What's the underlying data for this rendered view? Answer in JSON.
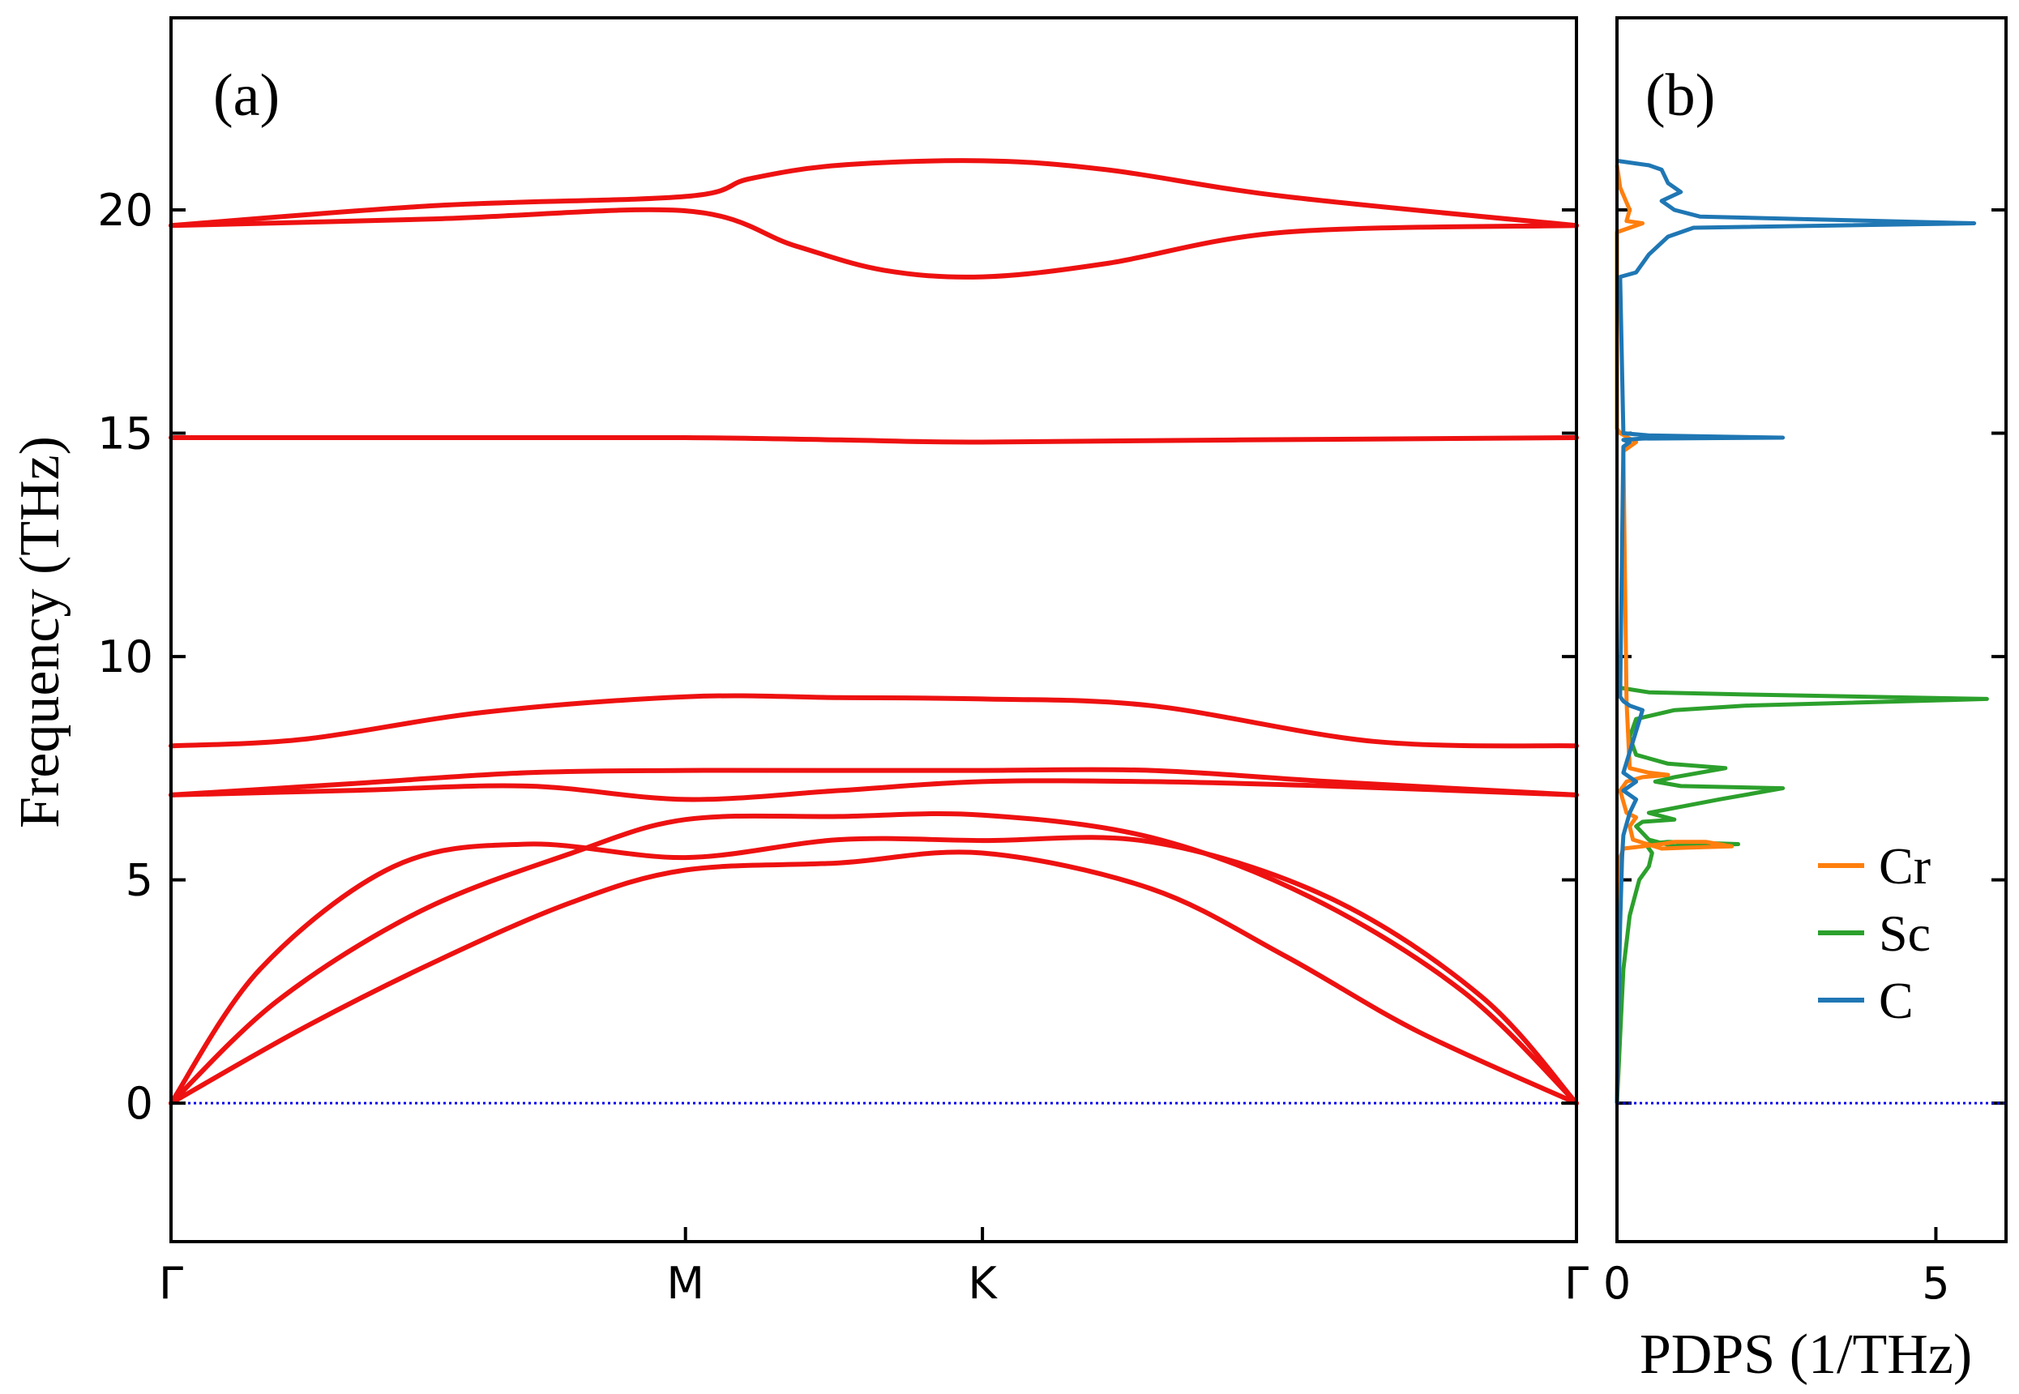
{
  "chart_data": [
    {
      "type": "line",
      "panel_label": "(a)",
      "ylabel": "Frequency (THz)",
      "xlabel": "",
      "ylim": [
        -3.1,
        24.3
      ],
      "yticks": [
        0,
        5,
        10,
        15,
        20
      ],
      "ytick_labels": [
        "0",
        "5",
        "10",
        "15",
        "20"
      ],
      "x_path": [
        "Γ",
        "M",
        "K",
        "Γ"
      ],
      "x_path_positions": [
        0,
        0.5774,
        0.9107,
        1.5774
      ],
      "grid": false,
      "line_color": "#ee1111",
      "zero_line_color": "#0000ee",
      "zero_line_value": 0,
      "series": [
        {
          "x": [
            0,
            0.15,
            0.3,
            0.45,
            0.5774,
            0.75,
            0.9107,
            1.1,
            1.25,
            1.4,
            1.5774
          ],
          "y": [
            0,
            1.7,
            3.2,
            4.5,
            5.22,
            5.38,
            5.6,
            4.8,
            3.3,
            1.6,
            0
          ]
        },
        {
          "x": [
            0,
            0.12,
            0.28,
            0.45,
            0.5774,
            0.75,
            0.9107,
            1.1,
            1.28,
            1.45,
            1.5774
          ],
          "y": [
            0,
            2.3,
            4.3,
            5.6,
            6.35,
            6.42,
            6.45,
            5.95,
            4.6,
            2.5,
            0
          ]
        },
        {
          "x": [
            0,
            0.1,
            0.25,
            0.4,
            0.5774,
            0.75,
            0.9107,
            1.1,
            1.3,
            1.47,
            1.5774
          ],
          "y": [
            0,
            3.0,
            5.3,
            5.8,
            5.5,
            5.9,
            5.88,
            5.85,
            4.6,
            2.4,
            0
          ]
        },
        {
          "x": [
            0,
            0.2,
            0.4,
            0.5774,
            0.75,
            0.9107,
            1.1,
            1.3,
            1.5774
          ],
          "y": [
            6.9,
            7.0,
            7.1,
            6.8,
            7.0,
            7.2,
            7.2,
            7.1,
            6.9
          ]
        },
        {
          "x": [
            0,
            0.2,
            0.4,
            0.5774,
            0.75,
            0.9107,
            1.1,
            1.3,
            1.5774
          ],
          "y": [
            6.9,
            7.15,
            7.4,
            7.45,
            7.45,
            7.45,
            7.45,
            7.2,
            6.9
          ]
        },
        {
          "x": [
            0,
            0.15,
            0.35,
            0.5774,
            0.75,
            0.9107,
            1.1,
            1.35,
            1.5774
          ],
          "y": [
            8.0,
            8.15,
            8.75,
            9.1,
            9.08,
            9.05,
            8.9,
            8.1,
            8.0
          ]
        },
        {
          "x": [
            0,
            0.3,
            0.5774,
            0.75,
            0.9107,
            1.2,
            1.5774
          ],
          "y": [
            14.9,
            14.9,
            14.9,
            14.85,
            14.8,
            14.85,
            14.9
          ]
        },
        {
          "x": [
            0,
            0.3,
            0.5774,
            0.7,
            0.8,
            0.9107,
            1.05,
            1.25,
            1.5774
          ],
          "y": [
            19.65,
            19.8,
            19.98,
            19.2,
            18.65,
            18.5,
            18.8,
            19.5,
            19.65
          ]
        },
        {
          "x": [
            0,
            0.3,
            0.5774,
            0.65,
            0.75,
            0.9107,
            1.05,
            1.25,
            1.5774
          ],
          "y": [
            19.65,
            20.1,
            20.3,
            20.7,
            21.0,
            21.1,
            20.9,
            20.3,
            19.65
          ]
        }
      ]
    },
    {
      "type": "line",
      "panel_label": "(b)",
      "xlabel": "PDPS (1/THz)",
      "xlim": [
        0,
        6.1
      ],
      "xticks": [
        0,
        5
      ],
      "xtick_labels": [
        "0",
        "5"
      ],
      "ylim": [
        -3.1,
        24.3
      ],
      "grid": false,
      "legend": "right",
      "zero_line_color": "#0000ee",
      "zero_line_value": 0,
      "series": [
        {
          "name": "Cr",
          "color": "#ff7f0e",
          "x": [
            0,
            0.01,
            0.02,
            0.05,
            0.1,
            0.4,
            0.7,
            0.9,
            1.4,
            1.8,
            1.1,
            0.7,
            0.25,
            0.2,
            0.3,
            0.15,
            0.05,
            0.15,
            0.4,
            0.8,
            0.5,
            0.2,
            0.15,
            0.1,
            0.3,
            0.05,
            0,
            0,
            0.2,
            0.4,
            0.15,
            0.2,
            0.05,
            0
          ],
          "y": [
            0,
            2,
            4,
            5.5,
            5.7,
            5.75,
            5.8,
            5.85,
            5.85,
            5.75,
            5.72,
            5.7,
            5.9,
            6.2,
            6.4,
            6.5,
            7.0,
            7.2,
            7.3,
            7.35,
            7.4,
            7.5,
            9.0,
            14.6,
            14.8,
            15.0,
            15.1,
            19.5,
            19.6,
            19.7,
            19.75,
            20.0,
            20.5,
            21.0
          ]
        },
        {
          "name": "Sc",
          "color": "#2ca02c",
          "x": [
            0,
            0.05,
            0.1,
            0.2,
            0.35,
            0.5,
            0.55,
            0.45,
            0.8,
            1.9,
            0.9,
            0.5,
            0.3,
            0.4,
            0.9,
            0.5,
            1.6,
            2.6,
            1.0,
            0.6,
            0.9,
            1.7,
            0.8,
            0.3,
            0.2,
            0.3,
            0.9,
            2.0,
            5.8,
            2.0,
            0.5,
            0.05
          ],
          "y": [
            0,
            1.5,
            3,
            4.2,
            5.0,
            5.3,
            5.6,
            5.8,
            5.85,
            5.8,
            5.75,
            5.9,
            6.2,
            6.3,
            6.35,
            6.5,
            6.8,
            7.05,
            7.1,
            7.2,
            7.3,
            7.5,
            7.6,
            7.8,
            8.2,
            8.6,
            8.8,
            8.9,
            9.05,
            9.15,
            9.2,
            9.3
          ]
        },
        {
          "name": "C",
          "color": "#1f77b4",
          "x": [
            0,
            0.02,
            0.05,
            0.08,
            0.1,
            0.2,
            0.3,
            0.1,
            0.3,
            0.1,
            0.4,
            0.2,
            0.1,
            0.05,
            0.1,
            0.15,
            0.2,
            0.1,
            0.4,
            2.6,
            0.5,
            0.1,
            0.05,
            0.3,
            0.5,
            0.8,
            1.2,
            5.6,
            1.3,
            0.9,
            0.7,
            1.0,
            0.8,
            0.7,
            0.5,
            0
          ],
          "y": [
            0,
            2,
            4,
            5.5,
            6.0,
            6.5,
            6.8,
            7.0,
            7.2,
            7.4,
            8.8,
            8.9,
            9.0,
            9.1,
            14.7,
            14.75,
            14.8,
            14.85,
            14.88,
            14.9,
            14.95,
            15.0,
            18.5,
            18.6,
            19.0,
            19.4,
            19.6,
            19.7,
            19.85,
            20.0,
            20.2,
            20.4,
            20.6,
            20.9,
            21.0,
            21.1
          ]
        }
      ]
    }
  ]
}
